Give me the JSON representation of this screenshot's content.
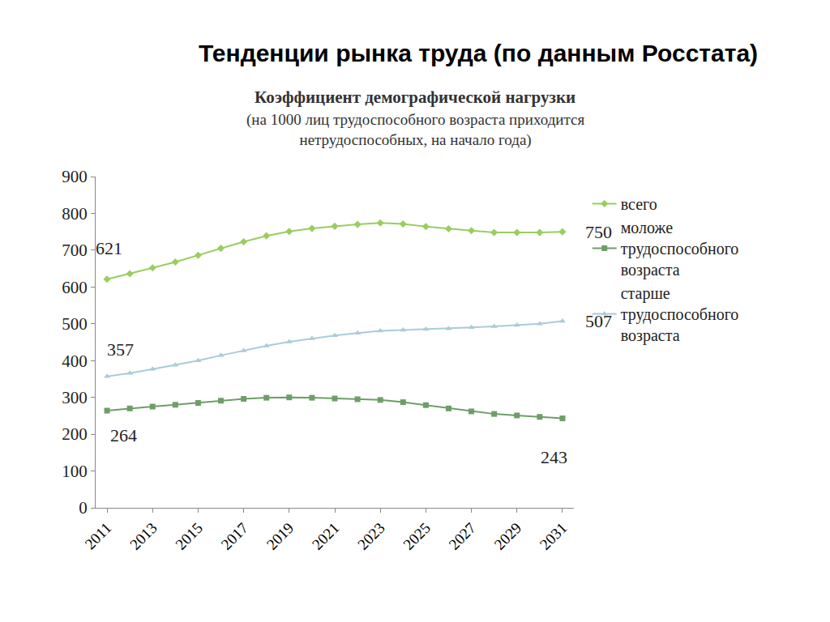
{
  "heading": "Тенденции рынка труда (по данным Росстата)",
  "chart_data": {
    "type": "line",
    "title": "Коэффициент демографической нагрузки",
    "subtitle": "(на 1000 лиц трудоспособного возраста приходится нетрудоспособных, на начало года)",
    "x": [
      2011,
      2012,
      2013,
      2014,
      2015,
      2016,
      2017,
      2018,
      2019,
      2020,
      2021,
      2022,
      2023,
      2024,
      2025,
      2026,
      2027,
      2028,
      2029,
      2030,
      2031
    ],
    "xlim": [
      2010.5,
      2031.5
    ],
    "xticks": [
      2011,
      2013,
      2015,
      2017,
      2019,
      2021,
      2023,
      2025,
      2027,
      2029,
      2031
    ],
    "ylim": [
      0,
      900
    ],
    "yticks": [
      0,
      100,
      200,
      300,
      400,
      500,
      600,
      700,
      800,
      900
    ],
    "grid": false,
    "legend": "right",
    "series": [
      {
        "name": "всего",
        "color": "#9acd5f",
        "marker": "diamond",
        "values": [
          621,
          636,
          652,
          668,
          686,
          705,
          723,
          739,
          751,
          759,
          765,
          770,
          774,
          771,
          764,
          758,
          753,
          748,
          748,
          748,
          750
        ]
      },
      {
        "name": "моложе трудоспособного возраста",
        "color": "#6e9e68",
        "marker": "square",
        "values": [
          264,
          270,
          275,
          280,
          285,
          291,
          296,
          299,
          300,
          299,
          297,
          295,
          293,
          287,
          279,
          270,
          262,
          255,
          251,
          247,
          243
        ]
      },
      {
        "name": "старше трудоспособного возраста",
        "color": "#a9ccd8",
        "marker": "triangle-up",
        "values": [
          357,
          366,
          377,
          388,
          400,
          414,
          427,
          440,
          451,
          460,
          468,
          475,
          481,
          483,
          485,
          487,
          490,
          493,
          496,
          500,
          507
        ]
      }
    ],
    "annotations": [
      {
        "text": "621",
        "x": 2011,
        "y": 621
      },
      {
        "text": "750",
        "x": 2031,
        "y": 750
      },
      {
        "text": "357",
        "x": 2011,
        "y": 357
      },
      {
        "text": "507",
        "x": 2031,
        "y": 507
      },
      {
        "text": "264",
        "x": 2011,
        "y": 264
      },
      {
        "text": "243",
        "x": 2031,
        "y": 243
      }
    ]
  }
}
